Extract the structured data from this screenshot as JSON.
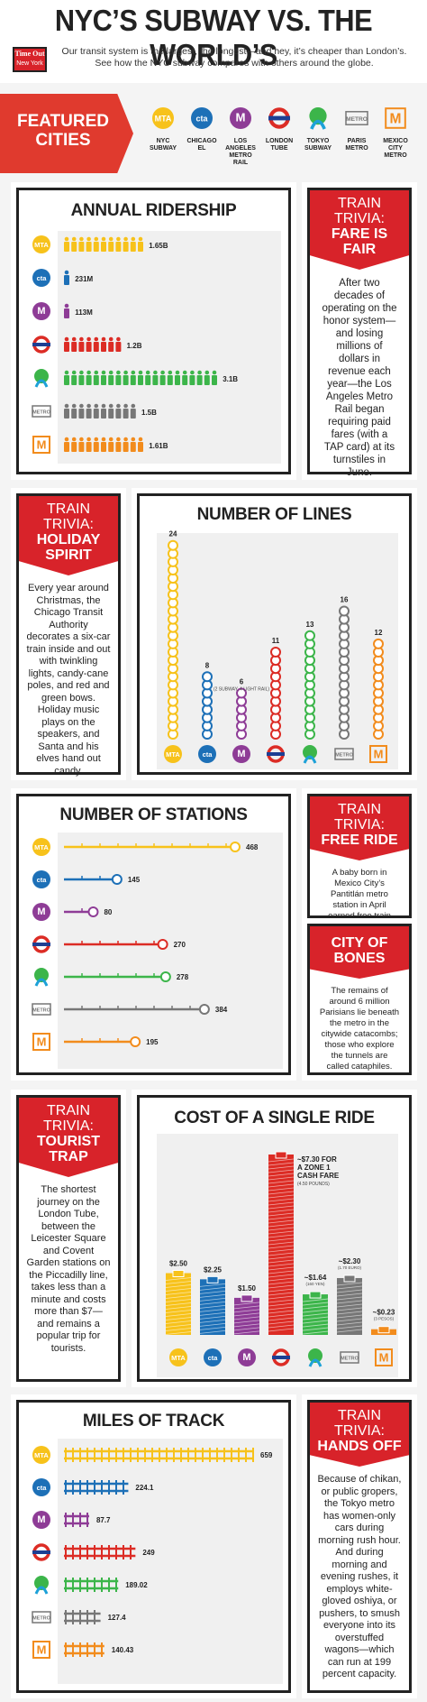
{
  "header": {
    "title": "NYC’S SUBWAY VS. THE WORLD’S",
    "logo_line1": "Time Out",
    "logo_line2": "New York",
    "subtitle": "Our transit system is the largest, the longest—and hey, it’s cheaper than London’s. See how the NYC subway compares with others around the globe."
  },
  "featured": {
    "label": "FEATURED CITIES",
    "cities": [
      {
        "name": "NYC SUBWAY",
        "icon": "mta-icon",
        "mark": "MTA",
        "color": "#f7c21b"
      },
      {
        "name": "CHICAGO EL",
        "icon": "cta-icon",
        "mark": "cta",
        "color": "#1d70b7"
      },
      {
        "name": "LOS ANGELES METRO RAIL",
        "icon": "la-metro-icon",
        "mark": "M",
        "color": "#8e3c96"
      },
      {
        "name": "LONDON TUBE",
        "icon": "london-roundel-icon",
        "mark": "",
        "color": "#dc2c25"
      },
      {
        "name": "TOKYO SUBWAY",
        "icon": "tokyo-metro-icon",
        "mark": "",
        "color": "#3cb54a"
      },
      {
        "name": "PARIS METRO",
        "icon": "paris-metro-icon",
        "mark": "METRO",
        "color": "#777777"
      },
      {
        "name": "MEXICO CITY METRO",
        "icon": "mexico-metro-icon",
        "mark": "M",
        "color": "#f28c1d"
      }
    ]
  },
  "ridership": {
    "title": "ANNUAL RIDERSHIP",
    "labels": [
      "1.65B",
      "231M",
      "113M",
      "1.2B",
      "3.1B",
      "1.5B",
      "1.61B"
    ],
    "people": [
      11,
      1,
      1,
      8,
      21,
      10,
      11
    ]
  },
  "trivia_fare": {
    "kicker": "TRAIN TRIVIA:",
    "head": "FARE IS FAIR",
    "body": "After two decades of operating on the honor system—and losing millions of dollars in revenue each year—the Los Angeles Metro Rail began requiring paid fares (with a TAP card) at its turnstiles in June."
  },
  "trivia_holiday": {
    "kicker": "TRAIN TRIVIA:",
    "head": "HOLIDAY SPIRIT",
    "body": "Every year around Christmas, the Chicago Transit Authority decorates a six-car train inside and out with twinkling lights, candy-cane poles, and red and green bows. Holiday music plays on the speakers, and Santa and his elves hand out candy."
  },
  "lines": {
    "title": "NUMBER OF LINES",
    "labels": [
      "24",
      "8",
      "6",
      "11",
      "13",
      "16",
      "12"
    ],
    "note": "(2 SUBWAY, 4 LIGHT RAIL)"
  },
  "stations": {
    "title": "NUMBER OF STATIONS",
    "labels": [
      "468",
      "145",
      "80",
      "270",
      "278",
      "384",
      "195"
    ]
  },
  "trivia_free": {
    "kicker": "TRAIN TRIVIA:",
    "head": "FREE RIDE",
    "body": "A baby born in Mexico City’s Pantitlán metro station in April earned free train travel for life."
  },
  "trivia_bones": {
    "head": "CITY OF BONES",
    "body": "The remains of around 6 million Parisians lie beneath the metro in the citywide catacombs; those who explore the tunnels are called cataphiles."
  },
  "trivia_tourist": {
    "kicker": "TRAIN TRIVIA:",
    "head": "TOURIST TRAP",
    "body": "The shortest journey on the London Tube, between the Leicester Square and Covent Garden stations on the Piccadilly line, takes less than a minute and costs more than $7—and remains a popular trip for tourists."
  },
  "cost": {
    "title": "COST OF A SINGLE RIDE",
    "labels": [
      "$2.50",
      "$2.25",
      "$1.50",
      "~$7.30 FOR A ZONE 1 CASH FARE",
      "~$1.64",
      "~$2.30",
      "~$0.23"
    ],
    "notes": [
      "",
      "",
      "",
      "(4.50 POUNDS)",
      "(160 YEN)",
      "(1.70 EURO)",
      "(3 PESOS)"
    ]
  },
  "track": {
    "title": "MILES OF TRACK",
    "labels": [
      "659",
      "224.1",
      "87.7",
      "249",
      "189.02",
      "127.4",
      "140.43"
    ]
  },
  "trivia_hands": {
    "kicker": "TRAIN TRIVIA:",
    "head": "HANDS OFF",
    "body": "Because of chikan, or public gropers, the Tokyo metro has women-only cars during morning rush hour. And during morning and evening rushes, it employs white-gloved oshiya, or pushers, to smush everyone into its overstuffed wagons—which can run at 199 percent capacity."
  },
  "chart_data": [
    {
      "type": "bar",
      "title": "ANNUAL RIDERSHIP",
      "categories": [
        "NYC Subway",
        "Chicago El",
        "Los Angeles Metro Rail",
        "London Tube",
        "Tokyo Subway",
        "Paris Metro",
        "Mexico City Metro"
      ],
      "values": [
        1650000000,
        231000000,
        113000000,
        1200000000,
        3100000000,
        1500000000,
        1610000000
      ]
    },
    {
      "type": "bar",
      "title": "NUMBER OF LINES",
      "categories": [
        "NYC Subway",
        "Chicago El",
        "Los Angeles Metro Rail",
        "London Tube",
        "Tokyo Subway",
        "Paris Metro",
        "Mexico City Metro"
      ],
      "values": [
        24,
        8,
        6,
        11,
        13,
        16,
        12
      ]
    },
    {
      "type": "bar",
      "title": "NUMBER OF STATIONS",
      "categories": [
        "NYC Subway",
        "Chicago El",
        "Los Angeles Metro Rail",
        "London Tube",
        "Tokyo Subway",
        "Paris Metro",
        "Mexico City Metro"
      ],
      "values": [
        468,
        145,
        80,
        270,
        278,
        384,
        195
      ]
    },
    {
      "type": "bar",
      "title": "COST OF A SINGLE RIDE",
      "categories": [
        "NYC Subway",
        "Chicago El",
        "Los Angeles Metro Rail",
        "London Tube",
        "Tokyo Subway",
        "Paris Metro",
        "Mexico City Metro"
      ],
      "values": [
        2.5,
        2.25,
        1.5,
        7.3,
        1.64,
        2.3,
        0.23
      ]
    },
    {
      "type": "bar",
      "title": "MILES OF TRACK",
      "categories": [
        "NYC Subway",
        "Chicago El",
        "Los Angeles Metro Rail",
        "London Tube",
        "Tokyo Subway",
        "Paris Metro",
        "Mexico City Metro"
      ],
      "values": [
        659,
        224.1,
        87.7,
        249,
        189.02,
        127.4,
        140.43
      ]
    }
  ]
}
